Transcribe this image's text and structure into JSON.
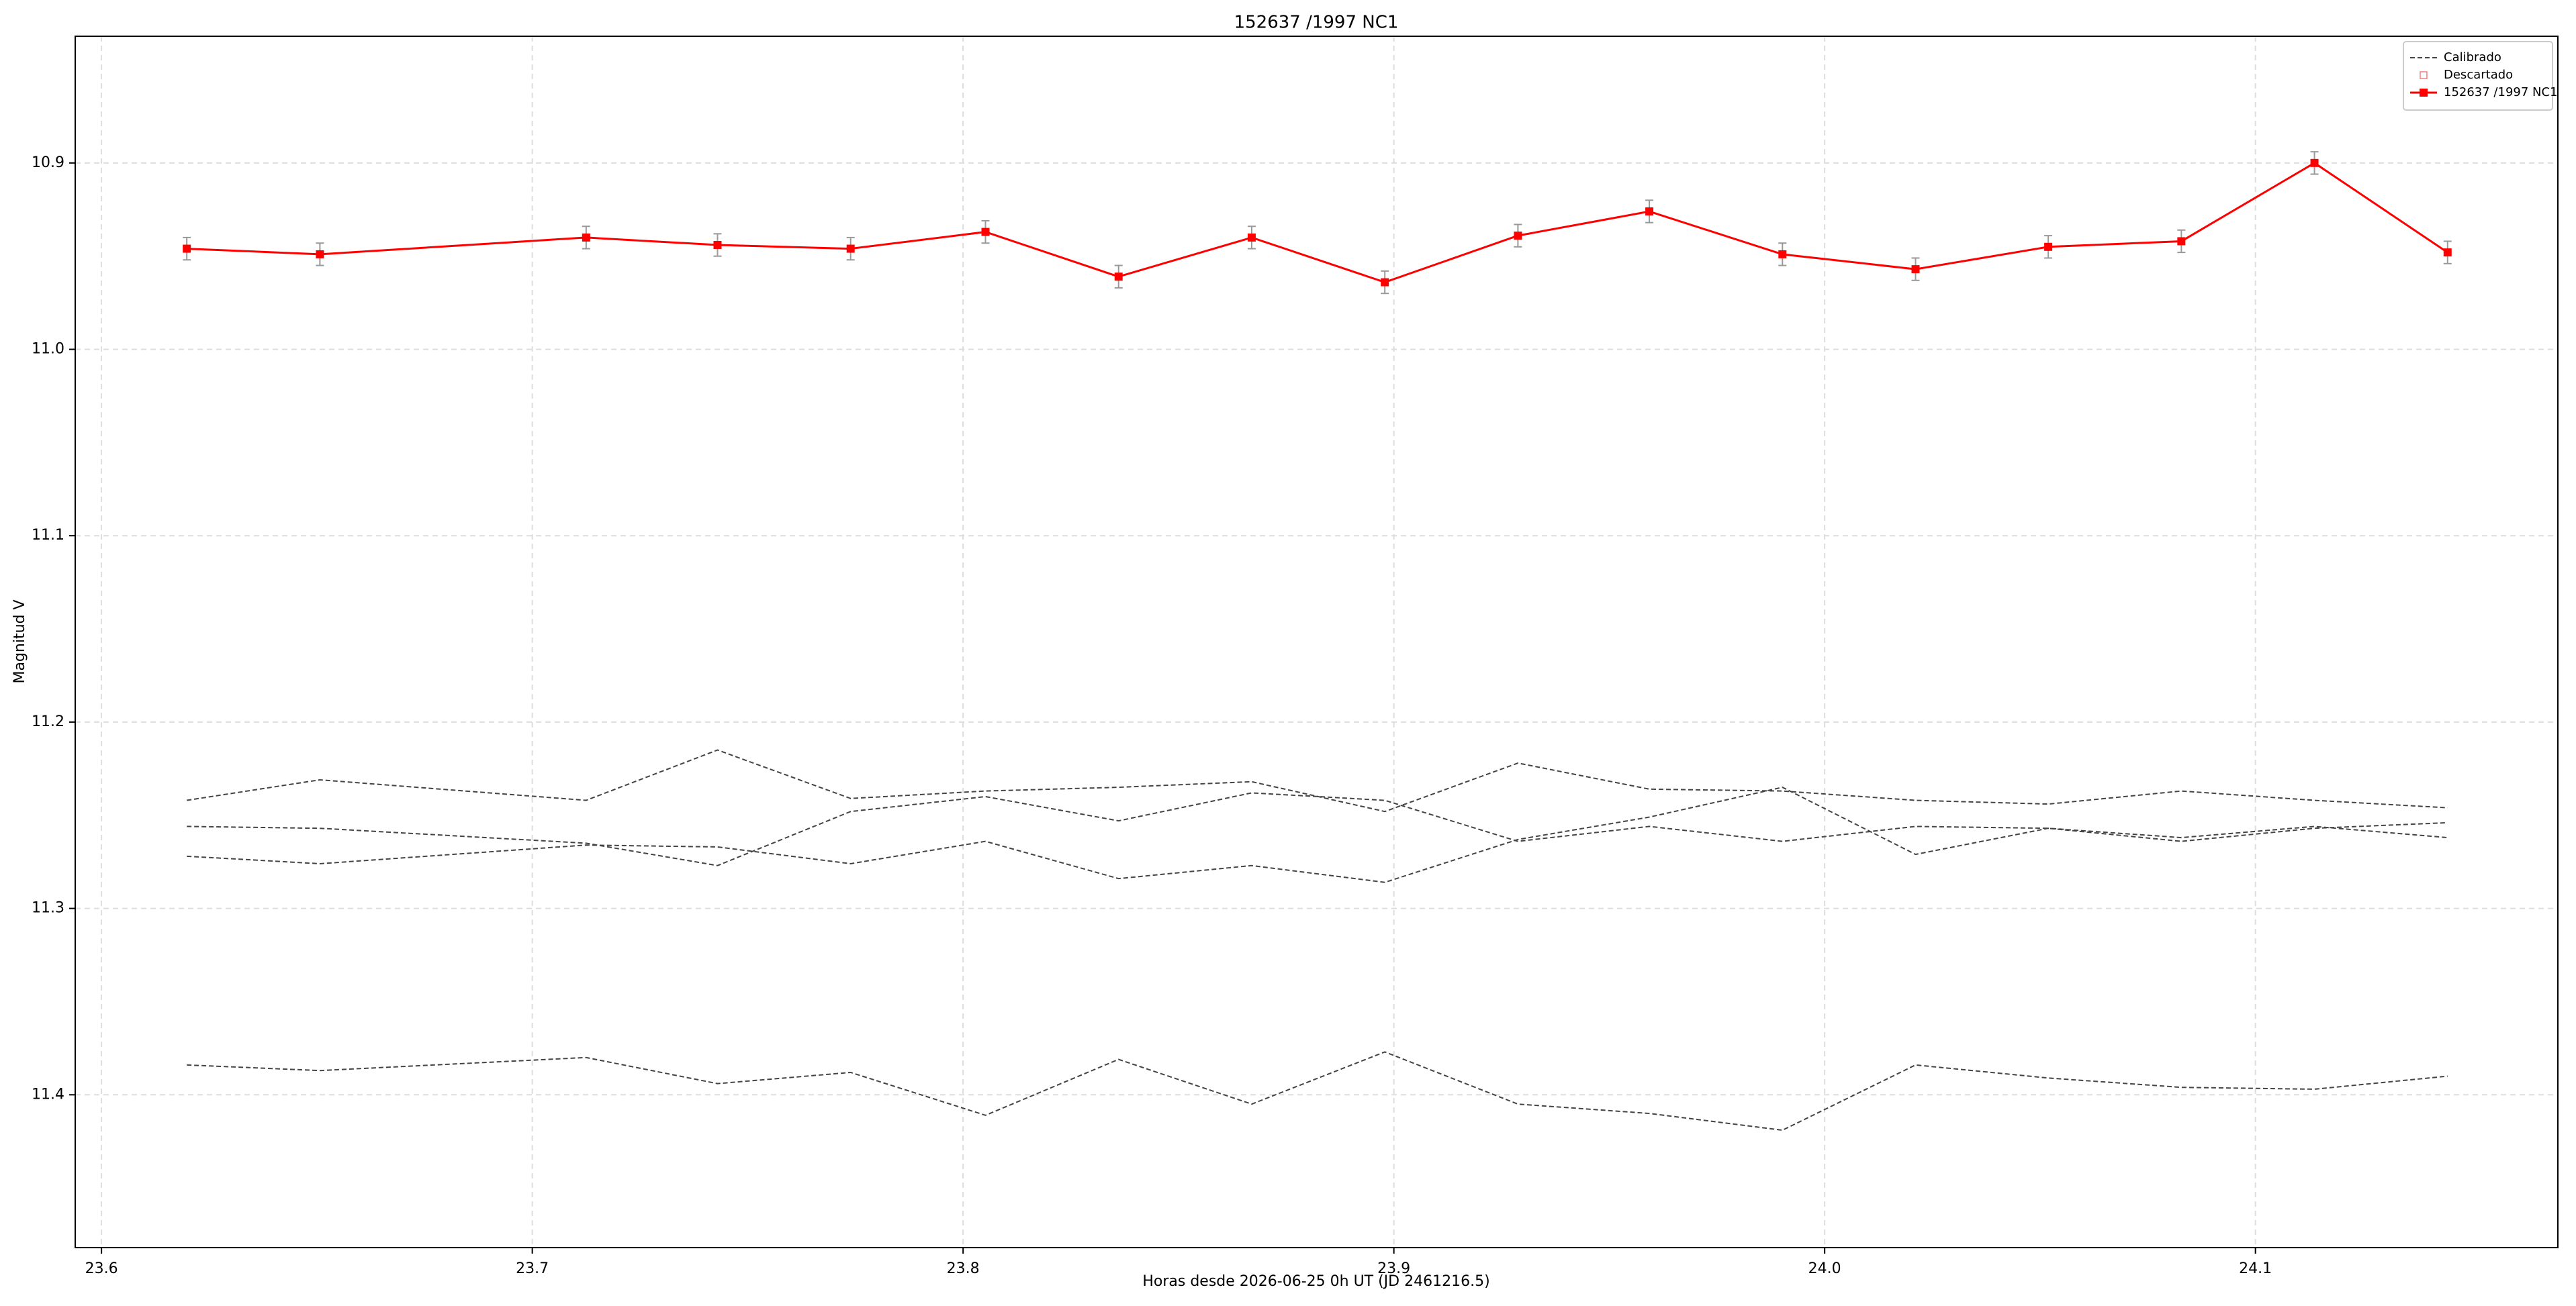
{
  "chart_data": {
    "type": "line",
    "title": "152637 /1997 NC1",
    "x_label": "Horas desde 2026-06-25 0h UT (JD 2461216.5)",
    "y_label": "Magnitud V",
    "x": [
      23.6198,
      23.6507,
      23.7125,
      23.743,
      23.7739,
      23.8052,
      23.8361,
      23.867,
      23.8979,
      23.9288,
      23.9593,
      23.9902,
      24.0211,
      24.0519,
      24.0828,
      24.1137,
      24.1446
    ],
    "series": [
      {
        "name": "152637 /1997 NC1",
        "color": "#ff0000",
        "values": [
          10.946,
          10.949,
          10.94,
          10.944,
          10.946,
          10.937,
          10.961,
          10.94,
          10.964,
          10.939,
          10.926,
          10.949,
          10.957,
          10.945,
          10.942,
          10.9,
          10.948
        ],
        "errors": [
          0.006,
          0.006,
          0.006,
          0.006,
          0.006,
          0.006,
          0.006,
          0.006,
          0.006,
          0.006,
          0.006,
          0.006,
          0.006,
          0.006,
          0.006,
          0.006,
          0.006
        ],
        "error_color": "#999999"
      }
    ],
    "calibrated": {
      "name": "Calibrado",
      "color": "#444444",
      "lines": [
        [
          11.242,
          11.231,
          11.242,
          11.215,
          11.241,
          11.237,
          11.235,
          11.232,
          11.248,
          11.222,
          11.236,
          11.237,
          11.242,
          11.244,
          11.237,
          11.242,
          11.246
        ],
        [
          11.256,
          11.257,
          11.265,
          11.277,
          11.248,
          11.24,
          11.253,
          11.238,
          11.242,
          11.264,
          11.256,
          11.264,
          11.256,
          11.257,
          11.264,
          11.257,
          11.254
        ],
        [
          11.272,
          11.276,
          11.266,
          11.267,
          11.276,
          11.264,
          11.284,
          11.277,
          11.286,
          11.263,
          11.251,
          11.235,
          11.271,
          11.257,
          11.262,
          11.256,
          11.262
        ],
        [
          11.384,
          11.387,
          11.38,
          11.394,
          11.388,
          11.411,
          11.381,
          11.405,
          11.377,
          11.405,
          11.41,
          11.419,
          11.384,
          11.391,
          11.396,
          11.397,
          11.39
        ]
      ]
    },
    "discarded": {
      "name": "Descartado",
      "color": "#f08080"
    },
    "xlim": [
      23.5939,
      24.1702
    ],
    "ylim": [
      10.832,
      11.482
    ],
    "y_inverted": true,
    "xticks": [
      23.6,
      23.7,
      23.8,
      23.9,
      {
        "value": 24,
        "label": "24.0"
      },
      24.1
    ],
    "yticks": [
      10.9,
      {
        "value": 11,
        "label": "11.0"
      },
      11.1,
      11.2,
      11.3,
      11.4
    ],
    "grid": true,
    "legend": "upper right"
  }
}
